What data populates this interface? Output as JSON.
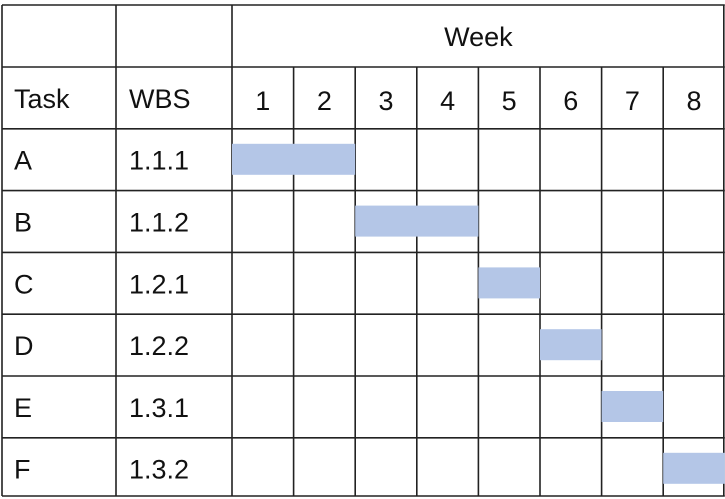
{
  "table": {
    "header": {
      "task_label": "Task",
      "wbs_label": "WBS",
      "week_label": "Week",
      "weeks": [
        "1",
        "2",
        "3",
        "4",
        "5",
        "6",
        "7",
        "8"
      ]
    },
    "rows": [
      {
        "task": "A",
        "wbs": "1.1.1",
        "start_week": 1,
        "end_week": 2
      },
      {
        "task": "B",
        "wbs": "1.1.2",
        "start_week": 3,
        "end_week": 4
      },
      {
        "task": "C",
        "wbs": "1.2.1",
        "start_week": 5,
        "end_week": 5
      },
      {
        "task": "D",
        "wbs": "1.2.2",
        "start_week": 6,
        "end_week": 6
      },
      {
        "task": "E",
        "wbs": "1.3.1",
        "start_week": 7,
        "end_week": 7
      },
      {
        "task": "F",
        "wbs": "1.3.2",
        "start_week": 8,
        "end_week": 8
      }
    ],
    "colors": {
      "bar": "#b4c6e7",
      "grid": "#222222",
      "text": "#111111"
    }
  }
}
